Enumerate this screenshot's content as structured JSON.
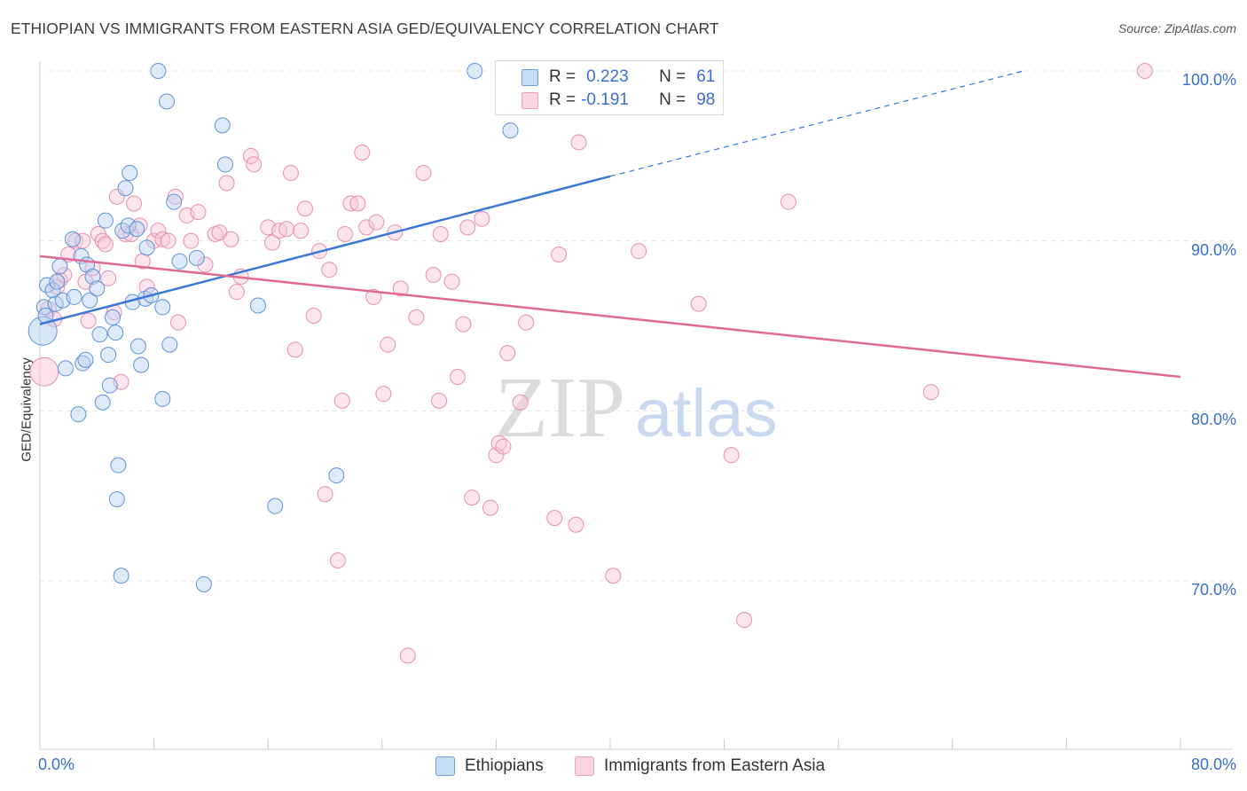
{
  "title": "ETHIOPIAN VS IMMIGRANTS FROM EASTERN ASIA GED/EQUIVALENCY CORRELATION CHART",
  "source": "Source: ZipAtlas.com",
  "watermark": {
    "zip": "ZIP",
    "atlas": "atlas"
  },
  "legend": {
    "r_label": "R =",
    "n_label": "N =",
    "rows": [
      {
        "r": "0.223",
        "n": "61",
        "color": "#6f9fe0"
      },
      {
        "r": "-0.191",
        "n": "98",
        "color": "#f0a0ba"
      }
    ]
  },
  "bottom_legend": [
    {
      "label": "Ethiopians",
      "color": "#6f9fe0"
    },
    {
      "label": "Immigrants from Eastern Asia",
      "color": "#f0a0ba"
    }
  ],
  "colors": {
    "blue": "#3a78d8",
    "pink": "#e06a96",
    "tick_text": "#3a6fcf"
  },
  "chart_data": {
    "type": "scatter",
    "title": "ETHIOPIAN VS IMMIGRANTS FROM EASTERN ASIA GED/EQUIVALENCY CORRELATION CHART",
    "xlabel": "",
    "ylabel": "GED/Equivalency",
    "xlim": [
      0,
      80
    ],
    "ylim": [
      60,
      102
    ],
    "x_tick_labels": [
      {
        "value": 0,
        "label": "0.0%"
      },
      {
        "value": 80,
        "label": "80.0%"
      }
    ],
    "y_tick_labels": [
      {
        "value": 100,
        "label": "100.0%"
      },
      {
        "value": 90,
        "label": "90.0%"
      },
      {
        "value": 80,
        "label": "80.0%"
      },
      {
        "value": 70,
        "label": "70.0%"
      }
    ],
    "grid": true,
    "legend_position": "top-center",
    "series": [
      {
        "name": "Ethiopians",
        "color": "#6f9fe0",
        "r": 0.223,
        "n": 61,
        "trend": {
          "x0": 0,
          "y0": 85.1,
          "x1": 40,
          "y1": 93.8,
          "dashed_to": {
            "x": 69,
            "y": 100.0
          }
        },
        "points": [
          [
            0.2,
            84.7
          ],
          [
            0.3,
            86.1
          ],
          [
            0.4,
            85.6
          ],
          [
            0.5,
            87.4
          ],
          [
            0.9,
            87.1
          ],
          [
            1.1,
            86.3
          ],
          [
            1.2,
            87.6
          ],
          [
            1.4,
            88.5
          ],
          [
            1.6,
            86.5
          ],
          [
            1.8,
            82.5
          ],
          [
            2.3,
            90.1
          ],
          [
            2.4,
            86.7
          ],
          [
            2.7,
            79.8
          ],
          [
            2.9,
            89.1
          ],
          [
            3.0,
            82.8
          ],
          [
            3.2,
            83.0
          ],
          [
            3.3,
            88.6
          ],
          [
            3.5,
            86.5
          ],
          [
            3.7,
            87.9
          ],
          [
            4.0,
            87.2
          ],
          [
            4.2,
            84.5
          ],
          [
            4.4,
            80.5
          ],
          [
            4.6,
            91.2
          ],
          [
            4.8,
            83.3
          ],
          [
            4.9,
            81.5
          ],
          [
            5.1,
            85.5
          ],
          [
            5.3,
            84.6
          ],
          [
            5.4,
            74.8
          ],
          [
            5.5,
            76.8
          ],
          [
            5.7,
            70.3
          ],
          [
            5.8,
            90.6
          ],
          [
            6.0,
            93.1
          ],
          [
            6.2,
            90.9
          ],
          [
            6.3,
            94.0
          ],
          [
            6.5,
            86.4
          ],
          [
            6.8,
            90.7
          ],
          [
            6.9,
            83.8
          ],
          [
            7.1,
            82.7
          ],
          [
            7.4,
            86.6
          ],
          [
            7.5,
            89.6
          ],
          [
            7.8,
            86.8
          ],
          [
            8.3,
            100.0
          ],
          [
            8.6,
            86.1
          ],
          [
            8.6,
            80.7
          ],
          [
            8.9,
            98.2
          ],
          [
            9.1,
            83.9
          ],
          [
            9.4,
            92.3
          ],
          [
            9.8,
            88.8
          ],
          [
            11.0,
            89.0
          ],
          [
            11.5,
            69.8
          ],
          [
            12.8,
            96.8
          ],
          [
            13.0,
            94.5
          ],
          [
            15.3,
            86.2
          ],
          [
            16.5,
            74.4
          ],
          [
            20.8,
            76.2
          ],
          [
            30.5,
            100.0
          ],
          [
            33.0,
            96.5
          ]
        ]
      },
      {
        "name": "Immigrants from Eastern Asia",
        "color": "#f0a0ba",
        "r": -0.191,
        "n": 98,
        "trend": {
          "x0": 0,
          "y0": 89.1,
          "x1": 80,
          "y1": 82.0
        },
        "points": [
          [
            0.3,
            82.3
          ],
          [
            0.6,
            86.0
          ],
          [
            1.0,
            85.4
          ],
          [
            1.2,
            87.3
          ],
          [
            1.4,
            87.7
          ],
          [
            1.7,
            88.0
          ],
          [
            2.0,
            89.2
          ],
          [
            2.5,
            90.0
          ],
          [
            3.0,
            90.0
          ],
          [
            3.2,
            87.6
          ],
          [
            3.4,
            85.3
          ],
          [
            3.7,
            88.4
          ],
          [
            4.1,
            90.4
          ],
          [
            4.4,
            90.0
          ],
          [
            4.6,
            89.8
          ],
          [
            4.8,
            87.8
          ],
          [
            5.2,
            85.8
          ],
          [
            5.4,
            92.6
          ],
          [
            5.7,
            81.7
          ],
          [
            6.0,
            90.4
          ],
          [
            6.4,
            90.4
          ],
          [
            6.6,
            92.2
          ],
          [
            7.0,
            90.9
          ],
          [
            7.2,
            88.8
          ],
          [
            7.5,
            87.3
          ],
          [
            8.0,
            90.0
          ],
          [
            8.3,
            90.6
          ],
          [
            8.6,
            90.1
          ],
          [
            9.0,
            90.0
          ],
          [
            9.5,
            92.6
          ],
          [
            9.7,
            85.2
          ],
          [
            10.3,
            91.5
          ],
          [
            10.6,
            90.0
          ],
          [
            11.1,
            91.7
          ],
          [
            11.6,
            88.6
          ],
          [
            12.3,
            90.4
          ],
          [
            12.6,
            90.5
          ],
          [
            13.1,
            93.4
          ],
          [
            13.4,
            90.1
          ],
          [
            13.8,
            87.0
          ],
          [
            14.1,
            87.9
          ],
          [
            14.8,
            95.0
          ],
          [
            15.0,
            94.5
          ],
          [
            16.0,
            90.8
          ],
          [
            16.3,
            89.9
          ],
          [
            16.8,
            90.6
          ],
          [
            17.3,
            90.7
          ],
          [
            17.6,
            94.0
          ],
          [
            17.9,
            83.6
          ],
          [
            18.3,
            90.6
          ],
          [
            18.6,
            91.9
          ],
          [
            19.2,
            85.6
          ],
          [
            19.6,
            89.4
          ],
          [
            20.0,
            75.1
          ],
          [
            20.3,
            88.3
          ],
          [
            20.9,
            71.2
          ],
          [
            21.2,
            80.6
          ],
          [
            21.4,
            90.4
          ],
          [
            21.8,
            92.2
          ],
          [
            22.3,
            92.2
          ],
          [
            22.6,
            95.2
          ],
          [
            22.9,
            90.8
          ],
          [
            23.4,
            86.7
          ],
          [
            23.6,
            91.1
          ],
          [
            24.1,
            81.0
          ],
          [
            24.4,
            83.9
          ],
          [
            24.9,
            90.5
          ],
          [
            25.3,
            87.2
          ],
          [
            25.8,
            65.6
          ],
          [
            26.4,
            85.5
          ],
          [
            26.9,
            94.0
          ],
          [
            27.6,
            88.0
          ],
          [
            28.0,
            80.6
          ],
          [
            28.1,
            90.4
          ],
          [
            28.9,
            87.6
          ],
          [
            29.3,
            82.0
          ],
          [
            29.7,
            85.1
          ],
          [
            30.0,
            90.8
          ],
          [
            30.3,
            74.9
          ],
          [
            31.0,
            91.3
          ],
          [
            31.6,
            74.3
          ],
          [
            32.0,
            77.4
          ],
          [
            32.2,
            78.1
          ],
          [
            32.5,
            77.9
          ],
          [
            32.8,
            83.4
          ],
          [
            33.7,
            80.5
          ],
          [
            34.1,
            85.2
          ],
          [
            36.1,
            73.7
          ],
          [
            36.4,
            89.2
          ],
          [
            37.6,
            73.3
          ],
          [
            37.8,
            95.8
          ],
          [
            40.2,
            70.3
          ],
          [
            42.0,
            89.4
          ],
          [
            42.5,
            100.1
          ],
          [
            46.2,
            86.3
          ],
          [
            48.5,
            77.4
          ],
          [
            49.4,
            67.7
          ],
          [
            52.5,
            92.3
          ],
          [
            62.5,
            81.1
          ],
          [
            77.5,
            100.0
          ]
        ]
      }
    ]
  }
}
